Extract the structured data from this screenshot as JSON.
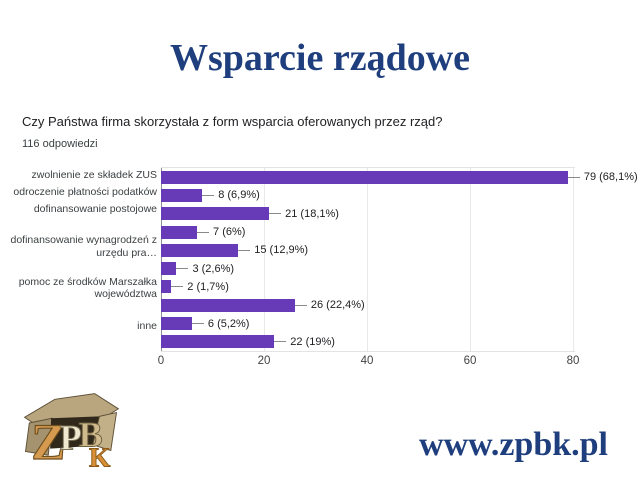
{
  "slide": {
    "title": "Wsparcie rządowe",
    "website": "www.zpbk.pl",
    "logo_alt": "ZPBK",
    "accent_color": "#1f3e7d"
  },
  "chart_data": {
    "type": "bar",
    "orientation": "horizontal",
    "title": "Czy Państwa firma skorzystała z form wsparcia oferowanych przez rząd?",
    "subtitle": "116 odpowiedzi",
    "categories": [
      "zwolnienie ze składek ZUS",
      "odroczenie płatności podatków",
      "dofinansowanie postojowe",
      "",
      "dofinansowanie wynagrodzeń z\nurzędu pra…",
      "",
      "pomoc ze środków Marszałka\nwojewództwa",
      "",
      "inne",
      ""
    ],
    "values": [
      79,
      8,
      21,
      7,
      15,
      3,
      2,
      26,
      6,
      22
    ],
    "labels": [
      "79 (68,1%)",
      "8 (6,9%)",
      "21 (18,1%)",
      "7 (6%)",
      "15 (12,9%)",
      "3 (2,6%)",
      "2 (1,7%)",
      "26 (22,4%)",
      "6 (5,2%)",
      "22 (19%)"
    ],
    "x_ticks": [
      0,
      20,
      40,
      60,
      80
    ],
    "xlim": [
      0,
      80
    ],
    "bar_color": "#673ab7",
    "grid": true,
    "legend": false
  }
}
